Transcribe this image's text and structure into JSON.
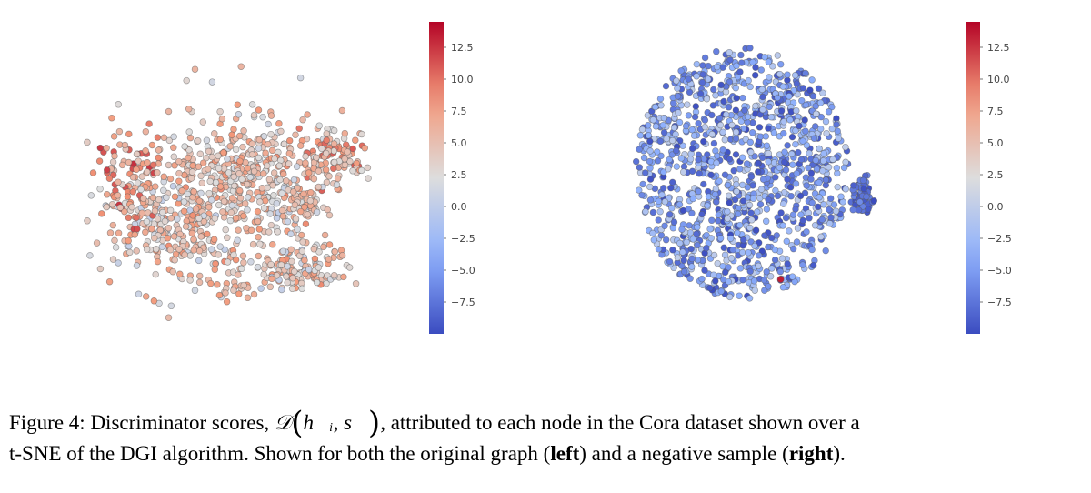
{
  "chart_data": [
    {
      "type": "scatter",
      "title": "",
      "xlabel": "",
      "ylabel": "",
      "axes_visible": false,
      "colormap": "coolwarm",
      "colorbar": {
        "ticks": [
          12.5,
          10.0,
          7.5,
          5.0,
          2.5,
          0.0,
          -2.5,
          -5.0,
          -7.5
        ],
        "tick_labels": [
          "12.5",
          "10.0",
          "7.5",
          "5.0",
          "2.5",
          "0.0",
          "−2.5",
          "−5.0",
          "−7.5"
        ],
        "range": [
          -10,
          14.5
        ],
        "placement": "right"
      },
      "clusters": [
        {
          "cx": 0.55,
          "cy": 0.42,
          "sx": 0.12,
          "sy": 0.1,
          "n": 260,
          "vmin": 1,
          "vmax": 9
        },
        {
          "cx": 0.85,
          "cy": 0.36,
          "sx": 0.06,
          "sy": 0.05,
          "n": 110,
          "vmin": 2,
          "vmax": 11
        },
        {
          "cx": 0.3,
          "cy": 0.64,
          "sx": 0.12,
          "sy": 0.1,
          "n": 230,
          "vmin": 0,
          "vmax": 9
        },
        {
          "cx": 0.7,
          "cy": 0.56,
          "sx": 0.07,
          "sy": 0.05,
          "n": 90,
          "vmin": 0,
          "vmax": 8
        },
        {
          "cx": 0.72,
          "cy": 0.8,
          "sx": 0.1,
          "sy": 0.05,
          "n": 150,
          "vmin": 0,
          "vmax": 9
        },
        {
          "cx": 0.15,
          "cy": 0.48,
          "sx": 0.06,
          "sy": 0.1,
          "n": 90,
          "vmin": 3,
          "vmax": 13
        },
        {
          "cx": 0.4,
          "cy": 0.52,
          "sx": 0.2,
          "sy": 0.22,
          "n": 180,
          "vmin": 1,
          "vmax": 8
        },
        {
          "cx": 0.52,
          "cy": 0.88,
          "sx": 0.03,
          "sy": 0.03,
          "n": 20,
          "vmin": 3,
          "vmax": 9
        }
      ]
    },
    {
      "type": "scatter",
      "title": "",
      "xlabel": "",
      "ylabel": "",
      "axes_visible": false,
      "colormap": "coolwarm",
      "colorbar": {
        "ticks": [
          12.5,
          10.0,
          7.5,
          5.0,
          2.5,
          0.0,
          -2.5,
          -5.0,
          -7.5
        ],
        "tick_labels": [
          "12.5",
          "10.0",
          "7.5",
          "5.0",
          "2.5",
          "0.0",
          "−2.5",
          "−5.0",
          "−7.5"
        ],
        "range": [
          -10,
          14.5
        ],
        "placement": "right"
      },
      "clusters": [
        {
          "shape": "disc",
          "cx": 0.47,
          "cy": 0.5,
          "r": 0.42,
          "n": 1200,
          "vmin": -10,
          "vmax": 0
        },
        {
          "cx": 0.94,
          "cy": 0.58,
          "sx": 0.02,
          "sy": 0.035,
          "n": 80,
          "vmin": -10,
          "vmax": -6
        }
      ],
      "highlight_point": {
        "x": 0.62,
        "y": 0.89,
        "value": 13.5
      }
    }
  ],
  "caption": {
    "prefix": "Figure 4: Discriminator scores, ",
    "math_D": "𝒟",
    "math_args": "h⃗ᵢ, s⃗",
    "line1_rest": ", attributed to each node in the Cora dataset shown over a",
    "line2_a": "t-SNE of the DGI algorithm. Shown for both the original graph (",
    "line2_left": "left",
    "line2_b": ") and a negative sample (",
    "line2_right": "right",
    "line2_c": ")."
  }
}
